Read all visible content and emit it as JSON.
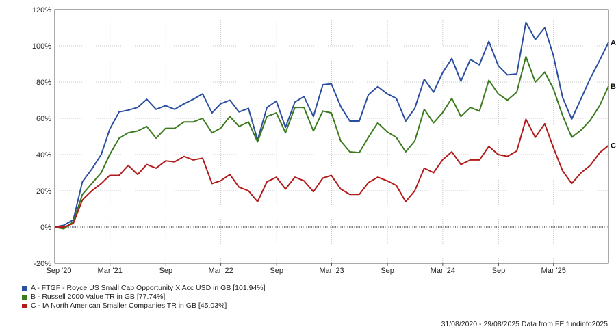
{
  "chart_data": {
    "type": "line",
    "y_axis": {
      "min": -20,
      "max": 120,
      "step": 20,
      "unit": "%"
    },
    "x_ticks": [
      {
        "label": "Sep '20",
        "date": "2020-09-01"
      },
      {
        "label": "Mar '21",
        "date": "2021-03-01"
      },
      {
        "label": "Sep",
        "date": "2021-09-01"
      },
      {
        "label": "Mar '22",
        "date": "2022-03-01"
      },
      {
        "label": "Sep",
        "date": "2022-09-01"
      },
      {
        "label": "Mar '23",
        "date": "2023-03-01"
      },
      {
        "label": "Sep",
        "date": "2023-09-01"
      },
      {
        "label": "Mar '24",
        "date": "2024-03-01"
      },
      {
        "label": "Sep",
        "date": "2024-09-01"
      },
      {
        "label": "Mar '25",
        "date": "2025-03-01"
      }
    ],
    "grid": true,
    "x": [
      "2020-08-31",
      "2020-09-30",
      "2020-10-31",
      "2020-11-30",
      "2020-12-31",
      "2021-01-31",
      "2021-02-28",
      "2021-03-31",
      "2021-04-30",
      "2021-05-31",
      "2021-06-30",
      "2021-07-31",
      "2021-08-31",
      "2021-09-30",
      "2021-10-31",
      "2021-11-30",
      "2021-12-31",
      "2022-01-31",
      "2022-02-28",
      "2022-03-31",
      "2022-04-30",
      "2022-05-31",
      "2022-06-30",
      "2022-07-31",
      "2022-08-31",
      "2022-09-30",
      "2022-10-31",
      "2022-11-30",
      "2022-12-31",
      "2023-01-31",
      "2023-02-28",
      "2023-03-31",
      "2023-04-30",
      "2023-05-31",
      "2023-06-30",
      "2023-07-31",
      "2023-08-31",
      "2023-09-30",
      "2023-10-31",
      "2023-11-30",
      "2023-12-31",
      "2024-01-31",
      "2024-02-29",
      "2024-03-31",
      "2024-04-30",
      "2024-05-31",
      "2024-06-30",
      "2024-07-31",
      "2024-08-31",
      "2024-09-30",
      "2024-10-31",
      "2024-11-30",
      "2024-12-31",
      "2025-01-31",
      "2025-02-28",
      "2025-03-31",
      "2025-04-30",
      "2025-05-31",
      "2025-06-30",
      "2025-07-31",
      "2025-08-29"
    ],
    "series": [
      {
        "name": "A - FTGF - Royce US Small Cap Opportunity X Acc USD in GB [101.94%]",
        "end_label": "A",
        "color": "#2b4fa0",
        "values": [
          0,
          1,
          4,
          25,
          32,
          40,
          54,
          63.5,
          64.5,
          66,
          70.5,
          65,
          67,
          65,
          68,
          70.5,
          73.5,
          63,
          68,
          70,
          63.5,
          65.5,
          48,
          66,
          69.5,
          55,
          69,
          72,
          61,
          78.5,
          79,
          66.5,
          58.5,
          58.5,
          73,
          77.5,
          73.5,
          71,
          58.5,
          65.5,
          81.5,
          74.5,
          85,
          93,
          80.5,
          92.5,
          89.5,
          102.5,
          89,
          84,
          84.5,
          113,
          103.5,
          110,
          95,
          71.5,
          59.5,
          71,
          82,
          92,
          101.94
        ]
      },
      {
        "name": "B - Russell 2000 Value TR in GB [77.74%]",
        "end_label": "B",
        "color": "#3c7a1e",
        "values": [
          0,
          -1,
          3,
          18,
          24,
          30,
          40,
          49,
          52,
          53,
          55.5,
          49,
          54.5,
          54.5,
          58,
          58,
          60,
          52,
          54.5,
          61,
          55.5,
          58,
          47,
          61,
          63,
          52,
          66,
          66,
          53,
          64,
          63,
          47.5,
          41.5,
          41,
          49.5,
          57.5,
          52.5,
          49.5,
          41.5,
          47.5,
          65,
          57.5,
          63,
          71,
          61,
          66,
          64,
          81,
          73.5,
          70,
          74.5,
          94,
          80,
          85.5,
          76.5,
          61.5,
          49.5,
          53.5,
          59,
          67,
          77.74
        ]
      },
      {
        "name": "C - IA North American Smaller Companies TR in GB [45.03%]",
        "end_label": "C",
        "color": "#b31b1b",
        "values": [
          0,
          0,
          2,
          15,
          20,
          24,
          28.5,
          28.5,
          34,
          29,
          34.5,
          32.5,
          36.5,
          36,
          39,
          37,
          38,
          24,
          25.5,
          29,
          22,
          20,
          14,
          25,
          27.5,
          21,
          27.5,
          25.5,
          19.5,
          27,
          28.5,
          21,
          18,
          18,
          24.5,
          27.5,
          25.5,
          23,
          14,
          20,
          32.5,
          30,
          37,
          41.5,
          34.5,
          37,
          37,
          44.5,
          40,
          39,
          42,
          59.5,
          49.5,
          57,
          44,
          31,
          24,
          30,
          34,
          41,
          45.03
        ]
      }
    ]
  },
  "footer": "31/08/2020 - 29/08/2025 Data from FE fundinfo2025"
}
